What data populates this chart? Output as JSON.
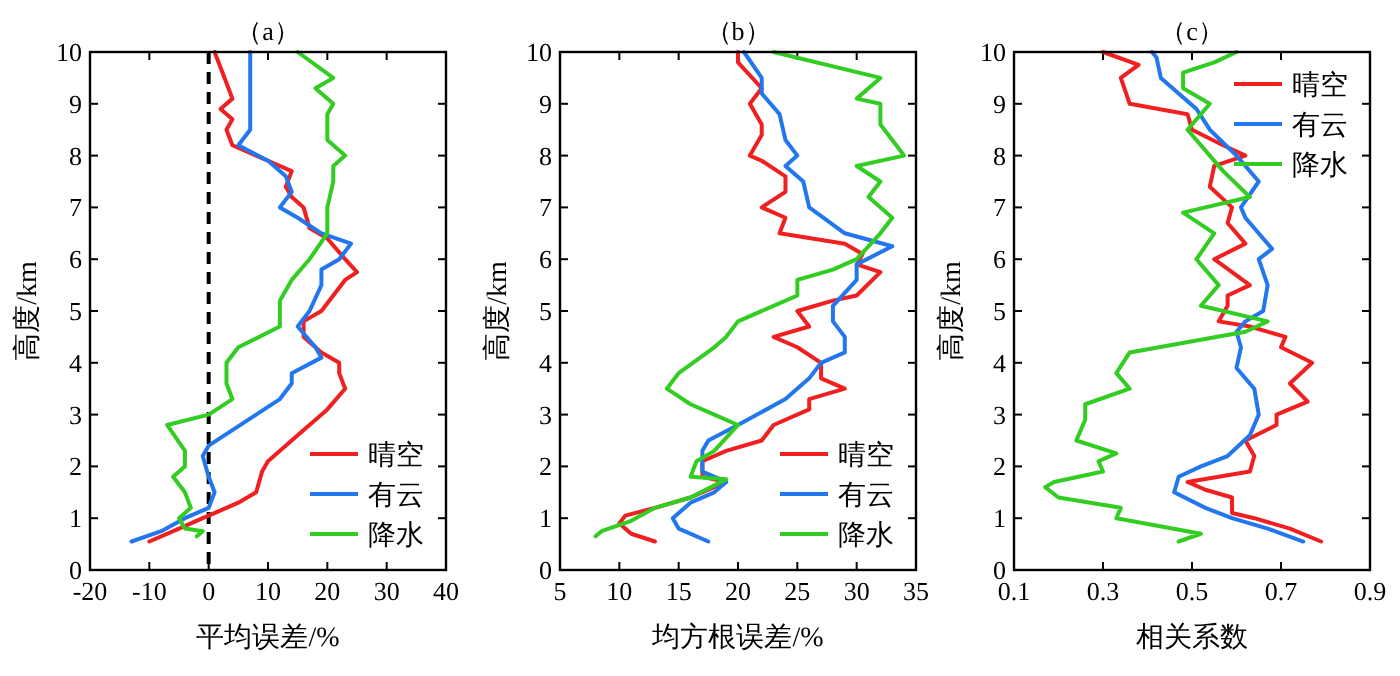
{
  "chart_data": [
    {
      "type": "line",
      "title": "（a）",
      "xlabel": "平均误差/%",
      "ylabel": "高度/km",
      "xlim": [
        -20,
        40
      ],
      "xticks": [
        -20,
        -10,
        0,
        10,
        20,
        30,
        40
      ],
      "ylim": [
        0,
        10
      ],
      "yticks": [
        0,
        1,
        2,
        3,
        4,
        5,
        6,
        7,
        8,
        9,
        10
      ],
      "legend": "bottom right",
      "ref_lines": [
        {
          "axis": "x",
          "value": 0,
          "color": "#000000",
          "line_style": "dashed"
        }
      ],
      "series": [
        {
          "name": "晴空",
          "color": "#f02020",
          "x": [
            -10,
            -5,
            -1,
            0,
            5,
            8,
            9,
            10,
            11,
            15,
            20,
            23,
            22,
            22,
            19,
            16,
            16,
            19,
            21,
            23,
            25,
            23,
            20,
            17,
            16,
            14,
            13,
            14,
            10,
            8,
            4,
            3,
            4,
            2,
            4,
            3,
            2,
            1
          ],
          "values": [
            0.55,
            0.8,
            1.0,
            1.05,
            1.3,
            1.5,
            1.9,
            2.1,
            2.2,
            2.6,
            3.1,
            3.5,
            3.8,
            4.0,
            4.2,
            4.5,
            4.8,
            5.0,
            5.3,
            5.6,
            5.75,
            6.0,
            6.4,
            6.6,
            7.0,
            7.2,
            7.4,
            7.7,
            7.9,
            8.0,
            8.2,
            8.5,
            8.7,
            8.9,
            9.1,
            9.4,
            9.7,
            10
          ]
        },
        {
          "name": "有云",
          "color": "#2277ee",
          "x": [
            -13,
            -8,
            -4,
            0,
            1,
            0,
            -1,
            0,
            4,
            8,
            12,
            14,
            14,
            19,
            18,
            15,
            17,
            19,
            19,
            22,
            24,
            19,
            15,
            12,
            14,
            13,
            10,
            5,
            7,
            7,
            7,
            7
          ],
          "values": [
            0.55,
            0.75,
            1.0,
            1.2,
            1.5,
            1.8,
            2.2,
            2.4,
            2.7,
            3.0,
            3.3,
            3.6,
            3.8,
            4.1,
            4.3,
            4.7,
            5.0,
            5.5,
            5.8,
            6.0,
            6.3,
            6.5,
            6.8,
            7.0,
            7.3,
            7.6,
            7.9,
            8.2,
            8.5,
            9.0,
            9.5,
            10
          ]
        },
        {
          "name": "降水",
          "color": "#33cc22",
          "x": [
            -2,
            -1,
            -4,
            -5,
            -3,
            -4,
            -6,
            -4,
            -4,
            -7,
            0,
            4,
            3,
            3,
            5,
            12,
            12,
            14,
            17,
            20,
            20,
            21,
            21,
            23,
            20,
            20,
            21,
            18,
            21,
            15
          ],
          "values": [
            0.65,
            0.75,
            0.8,
            1.0,
            1.2,
            1.5,
            1.8,
            2.0,
            2.3,
            2.8,
            3.0,
            3.3,
            3.6,
            4.0,
            4.3,
            4.7,
            5.2,
            5.6,
            6.0,
            6.5,
            7.0,
            7.5,
            7.8,
            8.0,
            8.3,
            8.8,
            9.0,
            9.3,
            9.5,
            10
          ]
        }
      ]
    },
    {
      "type": "line",
      "title": "（b）",
      "xlabel": "均方根误差/%",
      "ylabel": "高度/km",
      "xlim": [
        5,
        35
      ],
      "xticks": [
        5,
        10,
        15,
        20,
        25,
        30,
        35
      ],
      "ylim": [
        0,
        10
      ],
      "yticks": [
        0,
        1,
        2,
        3,
        4,
        5,
        6,
        7,
        8,
        9,
        10
      ],
      "legend": "bottom right",
      "series": [
        {
          "name": "晴空",
          "color": "#f02020",
          "x": [
            13,
            11,
            10,
            10.5,
            13,
            16,
            19,
            17,
            17,
            19,
            22,
            23,
            26,
            26,
            29,
            27,
            27,
            25,
            23,
            26,
            25,
            28,
            30,
            32,
            30,
            30.5,
            29,
            23.5,
            24,
            22,
            24,
            24,
            22,
            21,
            22,
            22,
            21,
            22,
            20,
            20
          ],
          "values": [
            0.55,
            0.7,
            0.9,
            1.05,
            1.2,
            1.4,
            1.7,
            1.8,
            2.1,
            2.3,
            2.5,
            2.8,
            3.1,
            3.3,
            3.5,
            3.7,
            4.0,
            4.3,
            4.5,
            4.7,
            5.0,
            5.2,
            5.3,
            5.75,
            5.9,
            6.1,
            6.3,
            6.5,
            6.8,
            7.0,
            7.3,
            7.6,
            7.9,
            8.0,
            8.4,
            8.6,
            9.0,
            9.3,
            9.8,
            10
          ]
        },
        {
          "name": "有云",
          "color": "#2277ee",
          "x": [
            17.5,
            15,
            14.5,
            16,
            18,
            19,
            17,
            17,
            17.5,
            20,
            24,
            26,
            27,
            29,
            29,
            28,
            28,
            30,
            30,
            33,
            29,
            26,
            25.5,
            24,
            25,
            24,
            23.5,
            22,
            22,
            20.5
          ],
          "values": [
            0.55,
            0.8,
            1.0,
            1.3,
            1.5,
            1.7,
            1.9,
            2.3,
            2.5,
            2.8,
            3.3,
            3.7,
            4.0,
            4.2,
            4.5,
            4.8,
            5.1,
            5.6,
            5.9,
            6.25,
            6.5,
            7.0,
            7.5,
            7.8,
            8.0,
            8.3,
            8.8,
            9.2,
            9.5,
            10
          ]
        },
        {
          "name": "降水",
          "color": "#33cc22",
          "x": [
            8,
            8.5,
            11,
            13,
            16,
            19,
            16,
            16.5,
            18,
            20,
            18,
            16,
            14,
            15,
            18,
            19,
            20,
            23,
            25,
            25,
            28,
            30,
            32,
            33,
            31,
            32,
            30,
            34,
            33,
            32,
            32,
            30,
            32,
            23
          ],
          "values": [
            0.65,
            0.75,
            0.95,
            1.2,
            1.4,
            1.75,
            1.8,
            2.1,
            2.3,
            2.8,
            3.0,
            3.2,
            3.5,
            3.8,
            4.3,
            4.5,
            4.8,
            5.1,
            5.3,
            5.6,
            5.8,
            6.0,
            6.5,
            6.8,
            7.2,
            7.5,
            7.8,
            8.0,
            8.3,
            8.6,
            9.0,
            9.1,
            9.5,
            10
          ]
        }
      ]
    },
    {
      "type": "line",
      "title": "（c）",
      "xlabel": "相关系数",
      "ylabel": "高度/km",
      "xlim": [
        0.1,
        0.9
      ],
      "xticks": [
        0.1,
        0.3,
        0.5,
        0.7,
        0.9
      ],
      "ylim": [
        0,
        10
      ],
      "yticks": [
        0,
        1,
        2,
        3,
        4,
        5,
        6,
        7,
        8,
        9,
        10
      ],
      "legend": "top right",
      "series": [
        {
          "name": "晴空",
          "color": "#f02020",
          "x": [
            0.79,
            0.72,
            0.64,
            0.59,
            0.59,
            0.53,
            0.49,
            0.63,
            0.64,
            0.62,
            0.69,
            0.69,
            0.76,
            0.72,
            0.77,
            0.7,
            0.71,
            0.63,
            0.56,
            0.58,
            0.58,
            0.63,
            0.55,
            0.62,
            0.58,
            0.59,
            0.54,
            0.55,
            0.62,
            0.57,
            0.5,
            0.49,
            0.36,
            0.34,
            0.38,
            0.3
          ],
          "values": [
            0.55,
            0.8,
            1.0,
            1.1,
            1.4,
            1.55,
            1.7,
            1.9,
            2.2,
            2.5,
            2.8,
            3.0,
            3.25,
            3.6,
            4.0,
            4.3,
            4.5,
            4.7,
            4.8,
            5.1,
            5.3,
            5.5,
            6.0,
            6.3,
            6.7,
            7.0,
            7.4,
            7.8,
            8.0,
            8.2,
            8.5,
            8.8,
            9.0,
            9.5,
            9.75,
            10
          ]
        },
        {
          "name": "有云",
          "color": "#2277ee",
          "x": [
            0.75,
            0.67,
            0.59,
            0.53,
            0.46,
            0.47,
            0.52,
            0.58,
            0.63,
            0.65,
            0.64,
            0.6,
            0.61,
            0.6,
            0.62,
            0.66,
            0.67,
            0.65,
            0.68,
            0.62,
            0.61,
            0.65,
            0.6,
            0.54,
            0.51,
            0.47,
            0.43,
            0.42,
            0.41
          ],
          "values": [
            0.55,
            0.8,
            1.0,
            1.2,
            1.5,
            1.8,
            2.0,
            2.2,
            2.6,
            3.0,
            3.5,
            3.9,
            4.3,
            4.6,
            4.8,
            5.0,
            5.5,
            6.0,
            6.2,
            6.8,
            7.0,
            7.5,
            8.0,
            8.5,
            8.9,
            9.2,
            9.5,
            9.9,
            10
          ]
        },
        {
          "name": "降水",
          "color": "#33cc22",
          "x": [
            0.47,
            0.52,
            0.33,
            0.34,
            0.2,
            0.17,
            0.19,
            0.3,
            0.29,
            0.33,
            0.24,
            0.26,
            0.26,
            0.36,
            0.33,
            0.36,
            0.62,
            0.67,
            0.52,
            0.56,
            0.51,
            0.55,
            0.48,
            0.63,
            0.57,
            0.54,
            0.49,
            0.54,
            0.48,
            0.48,
            0.55,
            0.6
          ],
          "values": [
            0.55,
            0.7,
            1.0,
            1.2,
            1.4,
            1.6,
            1.7,
            1.9,
            2.1,
            2.25,
            2.5,
            2.9,
            3.2,
            3.5,
            3.8,
            4.2,
            4.6,
            4.8,
            5.1,
            5.5,
            6.0,
            6.5,
            6.9,
            7.2,
            7.7,
            8.0,
            8.5,
            9.0,
            9.3,
            9.6,
            9.8,
            10
          ]
        }
      ]
    }
  ]
}
